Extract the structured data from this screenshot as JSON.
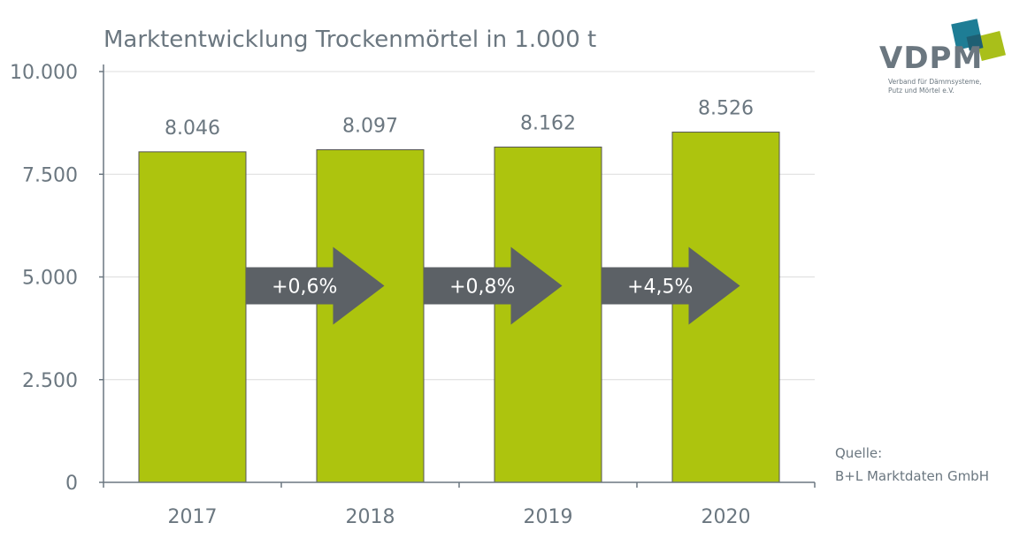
{
  "title": "Marktentwicklung Trockenmörtel in 1.000 t",
  "logo": {
    "name": "VDPM",
    "subtitle_line1": "Verband für Dämmsysteme,",
    "subtitle_line2": "Putz und Mörtel e.V.",
    "colors": {
      "teal": "#1e7d95",
      "green": "#a9bf1a",
      "dark_blue": "#1e5f73"
    }
  },
  "source": {
    "label": "Quelle:",
    "text": "B+L Marktdaten GmbH"
  },
  "colors": {
    "bar": "#adc40e",
    "arrow": "#5c6166",
    "text": "#6b7780",
    "grid": "#dcdcdc",
    "axis": "#6b7780"
  },
  "chart_data": {
    "type": "bar",
    "categories": [
      "2017",
      "2018",
      "2019",
      "2020"
    ],
    "values": [
      8046,
      8097,
      8162,
      8526
    ],
    "value_labels": [
      "8.046",
      "8.097",
      "8.162",
      "8.526"
    ],
    "ylim": [
      0,
      10000
    ],
    "yticks": [
      0,
      2500,
      5000,
      7500,
      10000
    ],
    "ytick_labels": [
      "0",
      "2.500",
      "5.000",
      "7.500",
      "10.000"
    ],
    "grid": true,
    "annotations": [
      {
        "from": "2017",
        "to": "2018",
        "text": "+0,6%"
      },
      {
        "from": "2018",
        "to": "2019",
        "text": "+0,8%"
      },
      {
        "from": "2019",
        "to": "2020",
        "text": "+4,5%"
      }
    ],
    "annotation_level": 5000
  }
}
